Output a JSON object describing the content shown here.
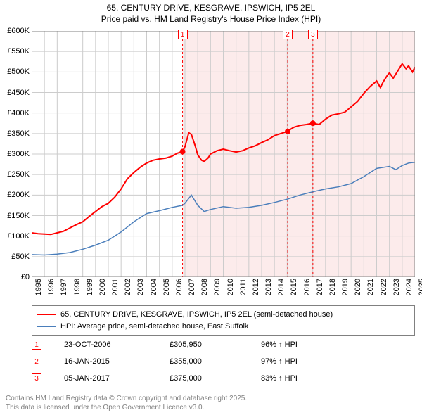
{
  "title": {
    "line1": "65, CENTURY DRIVE, KESGRAVE, IPSWICH, IP5 2EL",
    "line2": "Price paid vs. HM Land Registry's House Price Index (HPI)"
  },
  "chart": {
    "type": "line",
    "background_color": "#ffffff",
    "grid_color": "#cccccc",
    "highlight_bg": "#fcebeb",
    "axis_color": "#000000",
    "title_fontsize": 12,
    "label_fontsize": 11,
    "x_start_year": 1995,
    "x_end_year": 2025,
    "x_tick_step_years": 1,
    "ylim": [
      0,
      600000
    ],
    "ytick_step": 50000,
    "y_ticks": [
      "£0",
      "£50K",
      "£100K",
      "£150K",
      "£200K",
      "£250K",
      "£300K",
      "£350K",
      "£400K",
      "£450K",
      "£500K",
      "£550K",
      "£600K"
    ],
    "x_ticks": [
      "1995",
      "1996",
      "1997",
      "1998",
      "1999",
      "2000",
      "2001",
      "2002",
      "2003",
      "2004",
      "2005",
      "2006",
      "2007",
      "2008",
      "2009",
      "2010",
      "2011",
      "2012",
      "2013",
      "2014",
      "2015",
      "2016",
      "2017",
      "2018",
      "2019",
      "2020",
      "2021",
      "2022",
      "2023",
      "2024",
      "2025"
    ],
    "series": [
      {
        "name": "property-price",
        "legend": "65, CENTURY DRIVE, KESGRAVE, IPSWICH, IP5 2EL (semi-detached house)",
        "color": "#ff0000",
        "line_width": 2,
        "points": [
          [
            1995.0,
            108000
          ],
          [
            1995.5,
            106000
          ],
          [
            1996.0,
            105000
          ],
          [
            1996.5,
            104000
          ],
          [
            1997.0,
            108000
          ],
          [
            1997.5,
            112000
          ],
          [
            1998.0,
            120000
          ],
          [
            1998.5,
            128000
          ],
          [
            1999.0,
            135000
          ],
          [
            1999.5,
            148000
          ],
          [
            2000.0,
            160000
          ],
          [
            2000.5,
            172000
          ],
          [
            2001.0,
            180000
          ],
          [
            2001.5,
            195000
          ],
          [
            2002.0,
            215000
          ],
          [
            2002.5,
            240000
          ],
          [
            2003.0,
            255000
          ],
          [
            2003.5,
            268000
          ],
          [
            2004.0,
            278000
          ],
          [
            2004.5,
            285000
          ],
          [
            2005.0,
            288000
          ],
          [
            2005.5,
            290000
          ],
          [
            2006.0,
            295000
          ],
          [
            2006.4,
            302000
          ],
          [
            2006.8,
            305950
          ],
          [
            2007.0,
            318000
          ],
          [
            2007.3,
            352000
          ],
          [
            2007.5,
            348000
          ],
          [
            2007.8,
            320000
          ],
          [
            2008.0,
            298000
          ],
          [
            2008.3,
            285000
          ],
          [
            2008.5,
            282000
          ],
          [
            2008.8,
            290000
          ],
          [
            2009.0,
            300000
          ],
          [
            2009.5,
            308000
          ],
          [
            2010.0,
            312000
          ],
          [
            2010.5,
            308000
          ],
          [
            2011.0,
            305000
          ],
          [
            2011.5,
            308000
          ],
          [
            2012.0,
            315000
          ],
          [
            2012.5,
            320000
          ],
          [
            2013.0,
            328000
          ],
          [
            2013.5,
            335000
          ],
          [
            2014.0,
            345000
          ],
          [
            2014.5,
            350000
          ],
          [
            2015.0,
            355000
          ],
          [
            2015.5,
            365000
          ],
          [
            2016.0,
            370000
          ],
          [
            2016.5,
            372000
          ],
          [
            2017.0,
            375000
          ],
          [
            2017.5,
            372000
          ],
          [
            2018.0,
            385000
          ],
          [
            2018.5,
            395000
          ],
          [
            2019.0,
            398000
          ],
          [
            2019.5,
            402000
          ],
          [
            2020.0,
            415000
          ],
          [
            2020.5,
            428000
          ],
          [
            2021.0,
            448000
          ],
          [
            2021.5,
            465000
          ],
          [
            2022.0,
            478000
          ],
          [
            2022.3,
            462000
          ],
          [
            2022.5,
            475000
          ],
          [
            2022.8,
            490000
          ],
          [
            2023.0,
            498000
          ],
          [
            2023.3,
            485000
          ],
          [
            2023.5,
            495000
          ],
          [
            2023.8,
            510000
          ],
          [
            2024.0,
            520000
          ],
          [
            2024.3,
            508000
          ],
          [
            2024.5,
            515000
          ],
          [
            2024.8,
            500000
          ],
          [
            2025.0,
            512000
          ]
        ]
      },
      {
        "name": "hpi",
        "legend": "HPI: Average price, semi-detached house, East Suffolk",
        "color": "#4a7ebb",
        "line_width": 1.5,
        "points": [
          [
            1995.0,
            55000
          ],
          [
            1996.0,
            54000
          ],
          [
            1997.0,
            56000
          ],
          [
            1998.0,
            60000
          ],
          [
            1999.0,
            68000
          ],
          [
            2000.0,
            78000
          ],
          [
            2001.0,
            90000
          ],
          [
            2002.0,
            110000
          ],
          [
            2003.0,
            135000
          ],
          [
            2004.0,
            155000
          ],
          [
            2005.0,
            162000
          ],
          [
            2006.0,
            170000
          ],
          [
            2006.8,
            175000
          ],
          [
            2007.0,
            180000
          ],
          [
            2007.5,
            200000
          ],
          [
            2008.0,
            175000
          ],
          [
            2008.5,
            160000
          ],
          [
            2009.0,
            165000
          ],
          [
            2010.0,
            172000
          ],
          [
            2011.0,
            168000
          ],
          [
            2012.0,
            170000
          ],
          [
            2013.0,
            175000
          ],
          [
            2014.0,
            182000
          ],
          [
            2015.0,
            190000
          ],
          [
            2016.0,
            200000
          ],
          [
            2017.0,
            208000
          ],
          [
            2018.0,
            215000
          ],
          [
            2019.0,
            220000
          ],
          [
            2020.0,
            228000
          ],
          [
            2021.0,
            245000
          ],
          [
            2022.0,
            265000
          ],
          [
            2023.0,
            270000
          ],
          [
            2023.5,
            262000
          ],
          [
            2024.0,
            272000
          ],
          [
            2024.5,
            278000
          ],
          [
            2025.0,
            280000
          ]
        ]
      }
    ],
    "markers": [
      {
        "n": "1",
        "year": 2006.81,
        "date": "23-OCT-2006",
        "price": "£305,950",
        "hpi": "96% ↑ HPI",
        "dot_y": 305950
      },
      {
        "n": "2",
        "year": 2015.04,
        "date": "16-JAN-2015",
        "price": "£355,000",
        "hpi": "97% ↑ HPI",
        "dot_y": 355000
      },
      {
        "n": "3",
        "year": 2017.01,
        "date": "05-JAN-2017",
        "price": "£375,000",
        "hpi": "83% ↑ HPI",
        "dot_y": 375000
      }
    ]
  },
  "footer": {
    "line1": "Contains HM Land Registry data © Crown copyright and database right 2025.",
    "line2": "This data is licensed under the Open Government Licence v3.0."
  }
}
